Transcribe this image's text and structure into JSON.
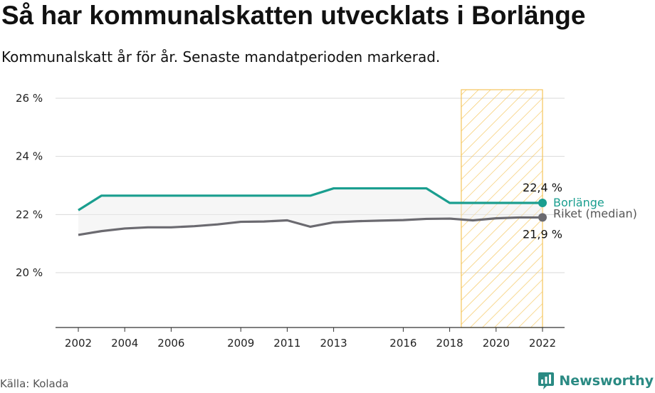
{
  "title": "Så har kommunalskatten utvecklats i Borlänge",
  "subtitle": "Kommunalskatt år för år. Senaste mandatperioden markerad.",
  "source": "Källa: Kolada",
  "brand": {
    "name": "Newsworthy",
    "icon": "newsworthy-logo-icon",
    "color": "#2a8a83"
  },
  "chart_data": {
    "type": "line",
    "x": [
      2002,
      2003,
      2004,
      2005,
      2006,
      2007,
      2008,
      2009,
      2010,
      2011,
      2012,
      2013,
      2014,
      2015,
      2016,
      2017,
      2018,
      2019,
      2020,
      2021,
      2022
    ],
    "series": [
      {
        "name": "Borlänge",
        "color": "#1a9e8f",
        "values": [
          22.15,
          22.65,
          22.65,
          22.65,
          22.65,
          22.65,
          22.65,
          22.65,
          22.65,
          22.65,
          22.65,
          22.9,
          22.9,
          22.9,
          22.9,
          22.9,
          22.4,
          22.4,
          22.4,
          22.4,
          22.4
        ],
        "end_label": "22,4 %"
      },
      {
        "name": "Riket (median)",
        "color": "#6b6a70",
        "values": [
          21.3,
          21.43,
          21.52,
          21.56,
          21.56,
          21.6,
          21.66,
          21.75,
          21.76,
          21.8,
          21.58,
          21.73,
          21.77,
          21.79,
          21.81,
          21.85,
          21.86,
          21.8,
          21.87,
          21.9,
          21.9
        ],
        "end_label": "21,9 %"
      }
    ],
    "y_ticks": [
      {
        "value": 20,
        "label": "20 %"
      },
      {
        "value": 22,
        "label": "22 %"
      },
      {
        "value": 24,
        "label": "24 %"
      },
      {
        "value": 26,
        "label": "26 %"
      }
    ],
    "x_ticks": [
      {
        "value": 2002,
        "label": "2002"
      },
      {
        "value": 2004,
        "label": "2004"
      },
      {
        "value": 2006,
        "label": "2006"
      },
      {
        "value": 2009,
        "label": "2009"
      },
      {
        "value": 2011,
        "label": "2011"
      },
      {
        "value": 2013,
        "label": "2013"
      },
      {
        "value": 2016,
        "label": "2016"
      },
      {
        "value": 2018,
        "label": "2018"
      },
      {
        "value": 2020,
        "label": "2020"
      },
      {
        "value": 2022,
        "label": "2022"
      }
    ],
    "ylim": [
      18,
      26.3
    ],
    "xlim": [
      2001.0,
      2022.9
    ],
    "highlight_period": {
      "from": 2018.5,
      "to": 2022,
      "color": "#f5c55a"
    },
    "grid": true,
    "xlabel": "",
    "ylabel": ""
  }
}
